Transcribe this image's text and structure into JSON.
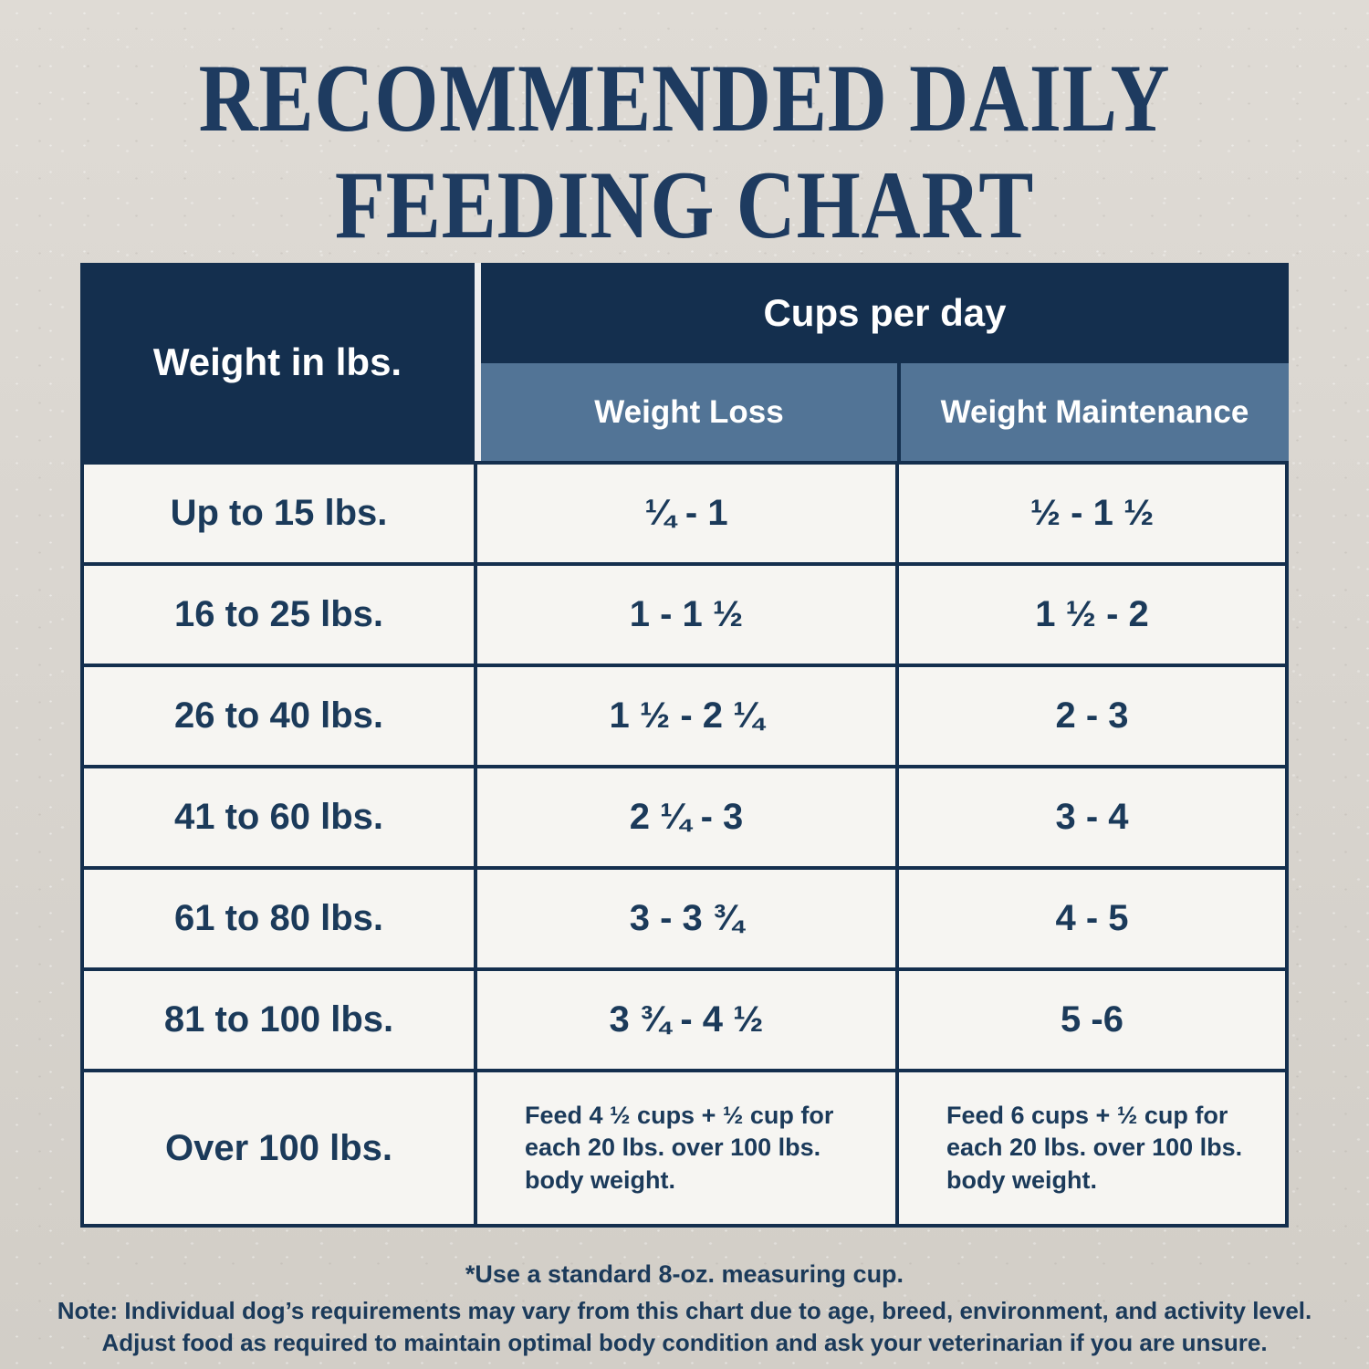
{
  "title": {
    "line1": "RECOMMENDED DAILY",
    "line2": "FEEDING CHART"
  },
  "table": {
    "col1_header": "Weight in lbs.",
    "group_header": "Cups per day",
    "subheaders": {
      "loss": "Weight Loss",
      "maintenance": "Weight Maintenance"
    },
    "rows": [
      {
        "weight": "Up to 15 lbs.",
        "loss": "¼ - 1",
        "maintenance": "½ - 1 ½"
      },
      {
        "weight": "16 to 25 lbs.",
        "loss": "1 - 1 ½",
        "maintenance": "1 ½ - 2"
      },
      {
        "weight": "26 to 40 lbs.",
        "loss": "1 ½ - 2 ¼",
        "maintenance": "2 - 3"
      },
      {
        "weight": "41 to 60 lbs.",
        "loss": "2 ¼ - 3",
        "maintenance": "3 - 4"
      },
      {
        "weight": "61 to 80 lbs.",
        "loss": "3 - 3 ¾",
        "maintenance": "4 - 5"
      },
      {
        "weight": "81 to 100 lbs.",
        "loss": "3 ¾ - 4 ½",
        "maintenance": "5 -6"
      },
      {
        "weight": "Over 100 lbs.",
        "loss": "Feed 4 ½ cups + ½ cup for each 20 lbs. over 100 lbs. body weight.",
        "maintenance": "Feed 6 cups + ½ cup for each 20 lbs. over 100 lbs. body weight."
      }
    ]
  },
  "footnotes": {
    "cup_note": "*Use a standard 8-oz. measuring cup.",
    "note_line1": "Note: Individual dog’s requirements may vary from this chart due to age, breed, environment, and activity level.",
    "note_line2": "Adjust food as required to maintain optimal body condition and ask your veterinarian if you are unsure."
  },
  "colors": {
    "navy": "#142f4e",
    "steel_blue": "#527496",
    "cell_background": "#f6f5f2",
    "title_text": "#1e3b60",
    "body_text": "#1b3a5a",
    "page_background": "#d8d4ce"
  },
  "chart_data": {
    "type": "table",
    "title": "RECOMMENDED DAILY FEEDING CHART",
    "columns": [
      "Weight in lbs.",
      "Cups per day — Weight Loss",
      "Cups per day — Weight Maintenance"
    ],
    "rows": [
      [
        "Up to 15 lbs.",
        "¼ - 1",
        "½ - 1 ½"
      ],
      [
        "16 to 25 lbs.",
        "1 - 1 ½",
        "1 ½ - 2"
      ],
      [
        "26 to 40 lbs.",
        "1 ½ - 2 ¼",
        "2 - 3"
      ],
      [
        "41 to 60 lbs.",
        "2 ¼ - 3",
        "3 - 4"
      ],
      [
        "61 to 80 lbs.",
        "3 - 3 ¾",
        "4 - 5"
      ],
      [
        "81 to 100 lbs.",
        "3 ¾ - 4 ½",
        "5 -6"
      ],
      [
        "Over 100 lbs.",
        "Feed 4 ½ cups + ½ cup for each 20 lbs. over 100 lbs. body weight.",
        "Feed 6 cups + ½ cup for each 20 lbs. over 100 lbs. body weight."
      ]
    ]
  }
}
